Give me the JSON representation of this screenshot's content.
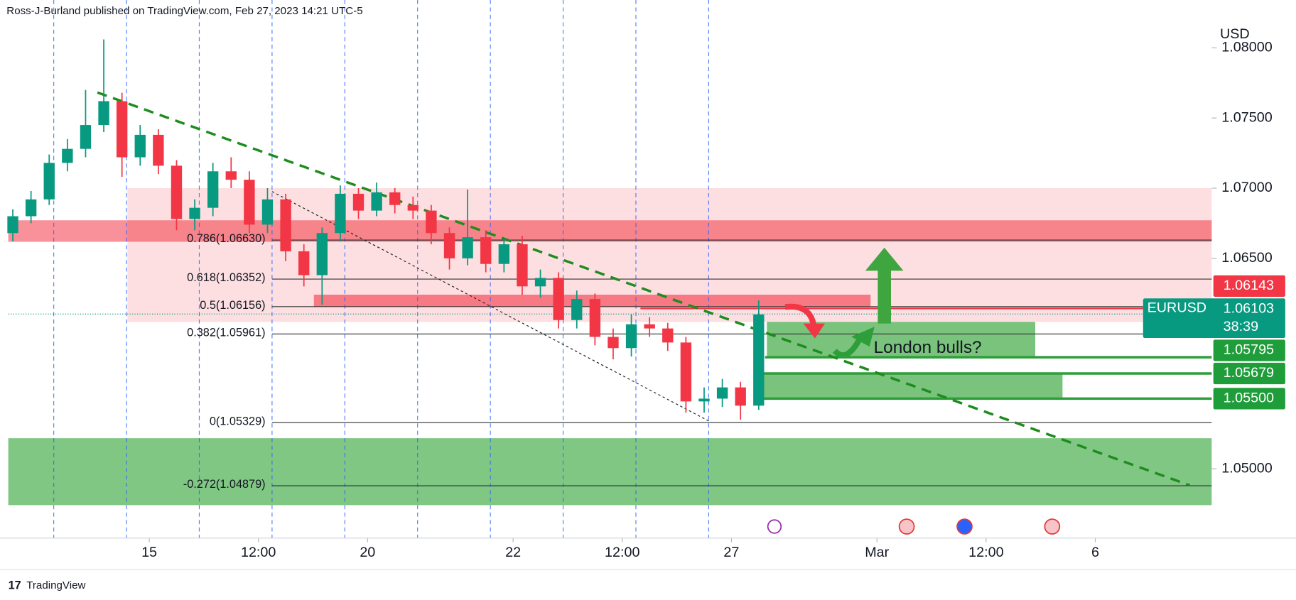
{
  "chart_data": {
    "type": "candlestick",
    "header": "Ross-J-Burland published on TradingView.com, Feb 27, 2023 14:21 UTC-5",
    "currency": "USD",
    "symbol": "EURUSD",
    "countdown": "38:39",
    "annotation": "London bulls?",
    "footer": "TradingView",
    "up_color": "#089981",
    "down_color": "#f23645",
    "xlim": [
      -15.5,
      116.8
    ],
    "ylim": [
      1.04506,
      1.08341
    ],
    "xticks": [
      {
        "value": 0,
        "label": "15"
      },
      {
        "value": 12,
        "label": "12:00"
      },
      {
        "value": 24,
        "label": "20"
      },
      {
        "value": 40,
        "label": "22"
      },
      {
        "value": 52,
        "label": "12:00"
      },
      {
        "value": 64,
        "label": "27"
      },
      {
        "value": 80,
        "label": "Mar"
      },
      {
        "value": 92,
        "label": "12:00"
      },
      {
        "value": 104,
        "label": "6"
      }
    ],
    "yticks": [
      {
        "value": 1.05,
        "label": "1.05000"
      },
      {
        "value": 1.065,
        "label": "1.06500"
      },
      {
        "value": 1.07,
        "label": "1.07000"
      },
      {
        "value": 1.075,
        "label": "1.07500"
      },
      {
        "value": 1.08,
        "label": "1.08000"
      }
    ],
    "session_lines": [
      -10.5,
      -2.5,
      5.5,
      13.5,
      21.5,
      29.5,
      37.5,
      45.5,
      53.5,
      61.5
    ],
    "x": [
      -15,
      -13,
      -11,
      -9,
      -7,
      -5,
      -3,
      -1,
      1,
      3,
      5,
      7,
      9,
      11,
      13,
      15,
      17,
      19,
      21,
      23,
      25,
      27,
      29,
      31,
      33,
      35,
      37,
      39,
      41,
      43,
      45,
      47,
      49,
      51,
      53,
      55,
      57,
      59,
      61,
      63,
      65,
      67
    ],
    "open": [
      1.0668,
      1.068,
      1.0692,
      1.0718,
      1.0728,
      1.0745,
      1.0762,
      1.0722,
      1.0738,
      1.0716,
      1.0678,
      1.0686,
      1.0712,
      1.0706,
      1.0674,
      1.0692,
      1.0655,
      1.0638,
      1.0668,
      1.0696,
      1.0684,
      1.0697,
      1.0688,
      1.0684,
      1.0668,
      1.065,
      1.0665,
      1.0646,
      1.066,
      1.063,
      1.0636,
      1.0606,
      1.0621,
      1.0594,
      1.0586,
      1.0603,
      1.06,
      1.059,
      1.0548,
      1.055,
      1.0558,
      1.0545
    ],
    "high": [
      1.0685,
      1.0698,
      1.0724,
      1.0735,
      1.077,
      1.0806,
      1.0768,
      1.0745,
      1.0742,
      1.072,
      1.0692,
      1.0718,
      1.0722,
      1.0712,
      1.07,
      1.0696,
      1.066,
      1.0672,
      1.0702,
      1.07,
      1.0704,
      1.07,
      1.0694,
      1.0688,
      1.0672,
      1.0699,
      1.067,
      1.0664,
      1.0666,
      1.0642,
      1.064,
      1.0627,
      1.0625,
      1.06,
      1.061,
      1.0608,
      1.0604,
      1.0594,
      1.0558,
      1.0564,
      1.0562,
      1.062
    ],
    "low": [
      1.0662,
      1.0675,
      1.0688,
      1.0712,
      1.0722,
      1.074,
      1.0708,
      1.0716,
      1.071,
      1.067,
      1.067,
      1.068,
      1.07,
      1.0668,
      1.0668,
      1.0648,
      1.063,
      1.0617,
      1.0662,
      1.0678,
      1.068,
      1.0682,
      1.0678,
      1.066,
      1.0642,
      1.0645,
      1.064,
      1.064,
      1.0624,
      1.0622,
      1.06,
      1.06,
      1.0588,
      1.0578,
      1.058,
      1.0594,
      1.0584,
      1.054,
      1.054,
      1.0544,
      1.0535,
      1.0542
    ],
    "close": [
      1.068,
      1.0692,
      1.0718,
      1.0728,
      1.0745,
      1.0762,
      1.0722,
      1.0738,
      1.0716,
      1.0678,
      1.0686,
      1.0712,
      1.0706,
      1.0674,
      1.0692,
      1.0655,
      1.0638,
      1.0668,
      1.0696,
      1.0684,
      1.0697,
      1.0688,
      1.0684,
      1.0668,
      1.065,
      1.0665,
      1.0646,
      1.066,
      1.063,
      1.0636,
      1.0606,
      1.0621,
      1.0594,
      1.0586,
      1.0603,
      1.06,
      1.059,
      1.0548,
      1.055,
      1.0558,
      1.0545,
      1.061
    ],
    "zones": [
      {
        "x": [
          -2.4,
          116.8
        ],
        "y": [
          1.07,
          1.06047
        ],
        "color": "rgba(242,54,69,0.16)"
      },
      {
        "x": [
          -15.5,
          116.8
        ],
        "y": [
          1.06771,
          1.06618
        ],
        "color": "rgba(242,54,69,0.55)"
      },
      {
        "x": [
          18.1,
          79.3
        ],
        "y": [
          1.06241,
          1.06153
        ],
        "color": "rgba(242,54,69,0.6)"
      },
      {
        "x": [
          -15.5,
          116.8
        ],
        "y": [
          1.05218,
          1.04741
        ],
        "color": "rgba(76,175,80,0.7)"
      },
      {
        "x": [
          67.9,
          97.4
        ],
        "y": [
          1.06047,
          1.058
        ],
        "color": "rgba(76,175,80,0.75)"
      },
      {
        "x": [
          66.5,
          100.4
        ],
        "y": [
          1.05682,
          1.05506
        ],
        "color": "rgba(76,175,80,0.75)"
      }
    ],
    "fib_levels": [
      {
        "value": 1.0663,
        "label": "0.786(1.06630)"
      },
      {
        "value": 1.06352,
        "label": "0.618(1.06352)"
      },
      {
        "value": 1.06156,
        "label": "0.5(1.06156)"
      },
      {
        "value": 1.05961,
        "label": "0.382(1.05961)"
      },
      {
        "value": 1.05329,
        "label": "0(1.05329)"
      },
      {
        "value": -0.272,
        "label": "-0.272(1.04879)",
        "price": 1.04879
      }
    ],
    "fib_x": [
      13.5,
      116.8
    ],
    "trendlines": [
      {
        "x": [
          -5.7,
          114.4
        ],
        "y": [
          1.07682,
          1.04882
        ],
        "color": "#1e8c1e",
        "style": "dashed-bold"
      },
      {
        "x": [
          13.5,
          61.5
        ],
        "y": [
          1.06976,
          1.05341
        ],
        "color": "#222222",
        "style": "dashed-thin"
      }
    ],
    "price_lines": [
      {
        "value": 1.06143,
        "x": [
          54,
          116.8
        ],
        "color": "#f23645",
        "width": 2
      },
      {
        "value": 1.06103,
        "x": [
          -15.5,
          116.8
        ],
        "color": "#089981",
        "width": 1,
        "dotted": true
      },
      {
        "value": 1.05795,
        "x": [
          67.7,
          116.8
        ],
        "color": "#2e9e3a",
        "width": 3
      },
      {
        "value": 1.05679,
        "x": [
          66.5,
          116.8
        ],
        "color": "#2e9e3a",
        "width": 3
      },
      {
        "value": 1.055,
        "x": [
          66.5,
          116.8
        ],
        "color": "#2e9e3a",
        "width": 3
      }
    ],
    "price_labels": [
      {
        "value": 1.06143,
        "label": "1.06143",
        "color": "#f23645"
      },
      {
        "value": 1.06103,
        "label": "1.06103",
        "color": "#089981"
      },
      {
        "value": 1.05795,
        "label": "1.05795",
        "color": "#1f9d3a"
      },
      {
        "value": 1.05679,
        "label": "1.05679",
        "color": "#1f9d3a"
      },
      {
        "value": 1.055,
        "label": "1.05500",
        "color": "#1f9d3a"
      }
    ]
  }
}
